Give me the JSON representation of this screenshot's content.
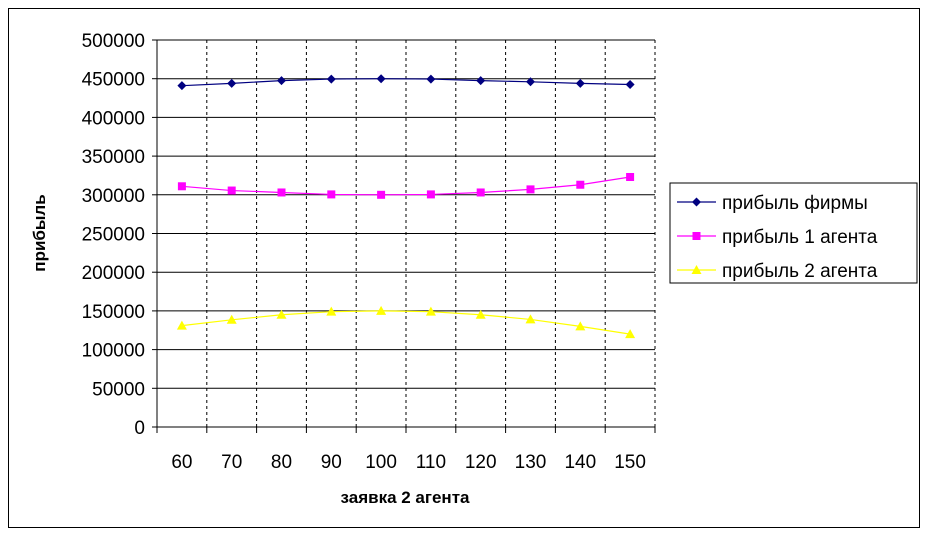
{
  "chart_data": {
    "type": "line",
    "title": "",
    "xlabel": "заявка 2 агента",
    "ylabel": "прибыль",
    "x": [
      60,
      70,
      80,
      90,
      100,
      110,
      120,
      130,
      140,
      150
    ],
    "ylim": [
      0,
      500000
    ],
    "yticks": [
      0,
      50000,
      100000,
      150000,
      200000,
      250000,
      300000,
      350000,
      400000,
      450000,
      500000
    ],
    "grid": true,
    "legend_position": "right",
    "series": [
      {
        "name": "прибыль фирмы",
        "color": "#000080",
        "marker": "diamond",
        "values": [
          441000,
          444000,
          447500,
          449500,
          450000,
          449500,
          447500,
          446000,
          444000,
          442500
        ]
      },
      {
        "name": "прибыль 1 агента",
        "color": "#ff00ff",
        "marker": "square",
        "values": [
          311000,
          305500,
          303000,
          300500,
          300000,
          300500,
          303000,
          307000,
          313000,
          323000
        ]
      },
      {
        "name": "прибыль 2 агента",
        "color": "#ffff00",
        "marker": "triangle",
        "values": [
          131000,
          138500,
          145000,
          149000,
          150000,
          149000,
          145000,
          139000,
          130000,
          120000
        ]
      }
    ]
  }
}
